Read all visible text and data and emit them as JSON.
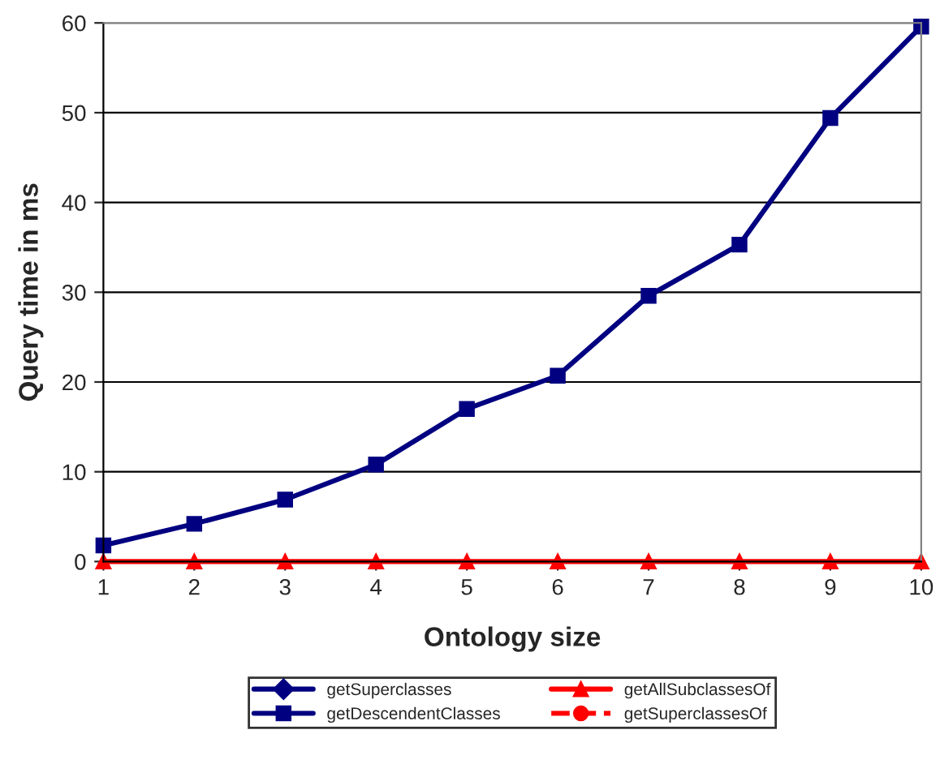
{
  "chart_data": {
    "type": "line",
    "xlabel": "Ontology size",
    "ylabel": "Query time in ms",
    "categories": [
      "1",
      "2",
      "3",
      "4",
      "5",
      "6",
      "7",
      "8",
      "9",
      "10"
    ],
    "series": [
      {
        "name": "getSuperclasses",
        "color": "#000080",
        "marker": "diamond",
        "line_style": "solid",
        "values": [
          null,
          null,
          null,
          null,
          null,
          null,
          null,
          null,
          null,
          null
        ]
      },
      {
        "name": "getDescendentClasses",
        "color": "#000080",
        "marker": "square",
        "line_style": "solid",
        "values": [
          1.8,
          4.2,
          6.9,
          10.8,
          17.0,
          20.7,
          29.6,
          35.3,
          49.4,
          59.6
        ]
      },
      {
        "name": "getAllSubclassesOf",
        "color": "#ff0000",
        "marker": "triangle",
        "line_style": "solid",
        "values": [
          0,
          0,
          0,
          0,
          0,
          0,
          0,
          0,
          0,
          0
        ]
      },
      {
        "name": "getSuperclassesOf",
        "color": "#ff0000",
        "marker": "circle",
        "line_style": "dashed",
        "values": [
          null,
          null,
          null,
          null,
          null,
          null,
          null,
          null,
          null,
          null
        ]
      }
    ],
    "ylim": [
      0,
      60
    ],
    "yticks": [
      0,
      10,
      20,
      30,
      40,
      50,
      60
    ],
    "grid": "y",
    "legend": "bottom"
  }
}
